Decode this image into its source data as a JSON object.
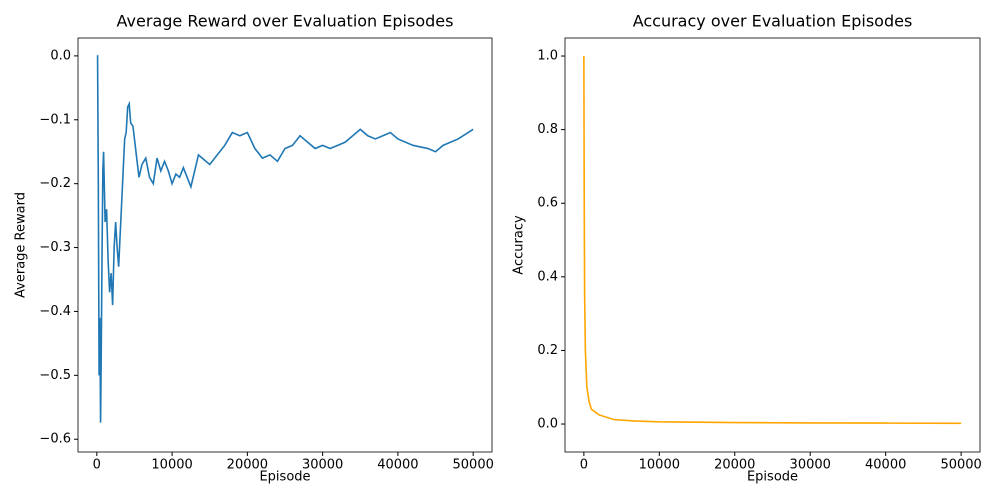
{
  "chart_data": [
    {
      "type": "line",
      "title": "Average Reward over Evaluation Episodes",
      "xlabel": "Episode",
      "ylabel": "Average Reward",
      "color": "#1f77b4",
      "x": [
        0,
        100,
        200,
        300,
        400,
        500,
        600,
        700,
        800,
        900,
        1100,
        1300,
        1500,
        1700,
        1900,
        2100,
        2300,
        2500,
        2700,
        2900,
        3100,
        3300,
        3500,
        3700,
        3900,
        4100,
        4300,
        4500,
        4800,
        5200,
        5600,
        6000,
        6500,
        7000,
        7500,
        8000,
        8500,
        9000,
        9500,
        10000,
        10500,
        11000,
        11500,
        12000,
        12500,
        13000,
        13500,
        14000,
        15000,
        16000,
        17000,
        18000,
        19000,
        20000,
        21000,
        22000,
        23000,
        24000,
        25000,
        26000,
        27000,
        28000,
        29000,
        30000,
        31000,
        32000,
        33000,
        34000,
        35000,
        36000,
        37000,
        38000,
        39000,
        40000,
        42000,
        44000,
        45000,
        46000,
        48000,
        50000
      ],
      "values": [
        0.0,
        0.0,
        -0.2,
        -0.5,
        -0.41,
        -0.574,
        -0.45,
        -0.3,
        -0.18,
        -0.15,
        -0.26,
        -0.24,
        -0.32,
        -0.37,
        -0.34,
        -0.39,
        -0.3,
        -0.26,
        -0.3,
        -0.33,
        -0.28,
        -0.23,
        -0.18,
        -0.13,
        -0.12,
        -0.08,
        -0.075,
        -0.105,
        -0.11,
        -0.15,
        -0.19,
        -0.17,
        -0.16,
        -0.19,
        -0.2,
        -0.16,
        -0.18,
        -0.165,
        -0.18,
        -0.2,
        -0.185,
        -0.19,
        -0.175,
        -0.19,
        -0.205,
        -0.18,
        -0.155,
        -0.16,
        -0.17,
        -0.155,
        -0.14,
        -0.12,
        -0.125,
        -0.12,
        -0.145,
        -0.16,
        -0.155,
        -0.165,
        -0.145,
        -0.14,
        -0.125,
        -0.135,
        -0.145,
        -0.14,
        -0.145,
        -0.14,
        -0.135,
        -0.125,
        -0.115,
        -0.125,
        -0.13,
        -0.125,
        -0.12,
        -0.13,
        -0.14,
        -0.145,
        -0.15,
        -0.14,
        -0.13,
        -0.115
      ],
      "xlim": [
        -2500,
        52500
      ],
      "xticks": [
        0,
        10000,
        20000,
        30000,
        40000,
        50000
      ],
      "ylim": [
        -0.62,
        0.028
      ],
      "yticks": [
        {
          "value": 0,
          "label": "0.0"
        },
        {
          "value": -0.1,
          "label": "−0.1"
        },
        {
          "value": -0.2,
          "label": "−0.2"
        },
        {
          "value": -0.3,
          "label": "−0.3"
        },
        {
          "value": -0.4,
          "label": "−0.4"
        },
        {
          "value": -0.5,
          "label": "−0.5"
        },
        {
          "value": -0.6,
          "label": "−0.6"
        }
      ]
    },
    {
      "type": "line",
      "title": "Accuracy over Evaluation Episodes",
      "xlabel": "Episode",
      "ylabel": "Accuracy",
      "color": "#ffa500",
      "x": [
        0,
        50,
        100,
        200,
        400,
        700,
        1000,
        2000,
        4000,
        7000,
        10000,
        20000,
        30000,
        40000,
        50000
      ],
      "values": [
        1.0,
        0.6,
        0.35,
        0.2,
        0.1,
        0.06,
        0.04,
        0.025,
        0.012,
        0.008,
        0.006,
        0.004,
        0.003,
        0.0025,
        0.002
      ],
      "xlim": [
        -2500,
        52500
      ],
      "xticks": [
        0,
        10000,
        20000,
        30000,
        40000,
        50000
      ],
      "ylim": [
        -0.076,
        1.049
      ],
      "yticks": [
        {
          "value": 0,
          "label": "0.0"
        },
        0.2,
        0.4,
        0.6,
        0.8,
        {
          "value": 1,
          "label": "1.0"
        }
      ]
    }
  ]
}
